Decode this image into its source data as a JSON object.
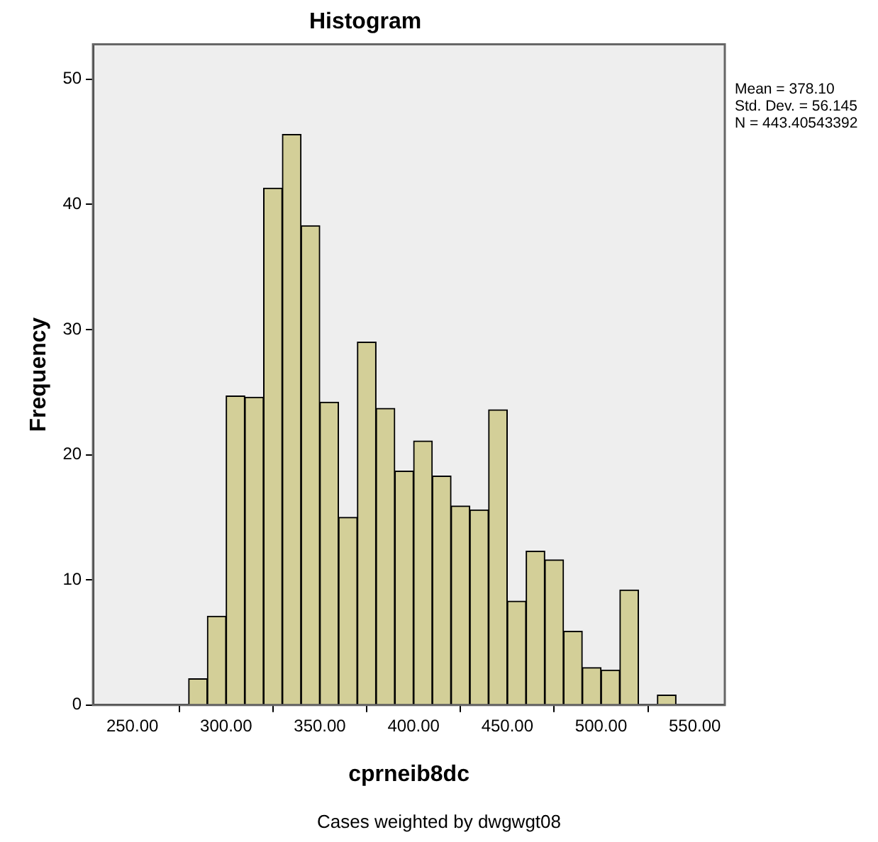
{
  "chart_data": {
    "type": "histogram",
    "title": "Histogram",
    "xlabel": "cprneib8dc",
    "ylabel": "Frequency",
    "bins": [
      280,
      290,
      300,
      310,
      320,
      330,
      340,
      350,
      360,
      370,
      380,
      390,
      400,
      410,
      420,
      430,
      440,
      450,
      460,
      470,
      480,
      490,
      500,
      510,
      520,
      530,
      540
    ],
    "values": [
      2.1,
      7.1,
      24.7,
      24.6,
      41.3,
      45.6,
      38.3,
      24.2,
      15.0,
      29.0,
      23.7,
      18.7,
      21.1,
      18.3,
      15.9,
      15.6,
      23.6,
      8.3,
      12.3,
      11.6,
      5.9,
      3.0,
      2.8,
      9.2,
      0,
      0.8
    ],
    "color": "#d3cf98",
    "xlim": [
      229,
      566
    ],
    "xticks": [
      {
        "value": 250,
        "label": "250.00"
      },
      {
        "value": 300,
        "label": "300.00"
      },
      {
        "value": 350,
        "label": "350.00"
      },
      {
        "value": 400,
        "label": "400.00"
      },
      {
        "value": 450,
        "label": "450.00"
      },
      {
        "value": 500,
        "label": "500.00"
      },
      {
        "value": 550,
        "label": "550.00"
      }
    ],
    "ylim": [
      0,
      52.8
    ],
    "yticks": [
      0,
      10,
      20,
      30,
      40,
      50
    ],
    "grid": false,
    "legend": false,
    "annotations": [
      "Mean = 378.10",
      "Std. Dev. = 56.145",
      "N = 443.40543392",
      "Cases weighted by dwgwgt08"
    ]
  }
}
